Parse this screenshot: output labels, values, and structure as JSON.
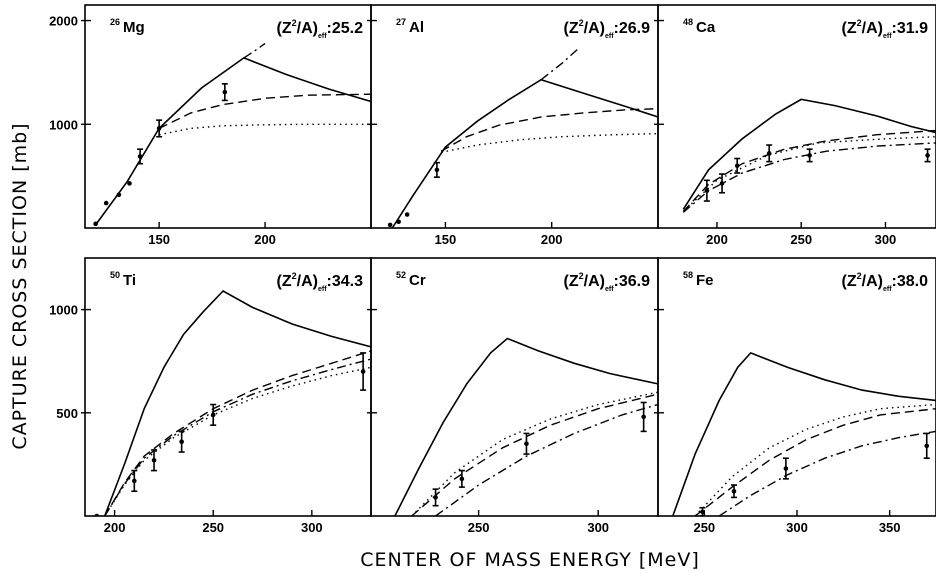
{
  "figure": {
    "ylabel": "CAPTURE CROSS SECTION [mb]",
    "xlabel": "CENTER OF MASS ENERGY [MeV]"
  },
  "chart_data": [
    {
      "type": "line",
      "nucleus": {
        "mass": "26",
        "symbol": "Mg"
      },
      "zeff_value": "25.2",
      "xlim": [
        115,
        250
      ],
      "ylim": [
        0,
        2150
      ],
      "x_ticks": [
        150,
        200
      ],
      "y_ticks": [
        1000,
        2000
      ],
      "x_tick_labels": [
        "150",
        "200"
      ],
      "y_tick_labels": [
        "1000",
        "2000"
      ],
      "series": [
        {
          "style": "solid",
          "x": [
            120,
            135,
            150,
            170,
            190,
            210,
            230,
            250
          ],
          "y": [
            30,
            450,
            960,
            1350,
            1640,
            1480,
            1340,
            1220
          ]
        },
        {
          "style": "dashed",
          "x": [
            150,
            165,
            180,
            200,
            220,
            250
          ],
          "y": [
            960,
            1110,
            1190,
            1250,
            1280,
            1290
          ]
        },
        {
          "style": "dotted",
          "x": [
            150,
            165,
            180,
            200,
            220,
            250
          ],
          "y": [
            900,
            960,
            985,
            995,
            1000,
            1000
          ]
        },
        {
          "style": "dashdot",
          "x": [
            190,
            196,
            200
          ],
          "y": [
            1640,
            1720,
            1780
          ]
        },
        {
          "style": "points",
          "x": [
            120,
            125,
            131,
            136,
            141,
            150,
            181
          ],
          "y": [
            40,
            240,
            320,
            430,
            690,
            960,
            1310
          ],
          "err": [
            0,
            0,
            0,
            0,
            70,
            80,
            80
          ]
        }
      ]
    },
    {
      "type": "line",
      "nucleus": {
        "mass": "27",
        "symbol": "Al"
      },
      "zeff_value": "26.9",
      "xlim": [
        115,
        250
      ],
      "ylim": [
        0,
        2150
      ],
      "x_ticks": [
        150,
        200
      ],
      "y_ticks": [
        1000,
        2000
      ],
      "x_tick_labels": [
        "150",
        "200"
      ],
      "y_tick_labels": [],
      "series": [
        {
          "style": "solid",
          "x": [
            125,
            135,
            150,
            165,
            180,
            195,
            215,
            235,
            250
          ],
          "y": [
            0,
            320,
            780,
            1030,
            1240,
            1430,
            1300,
            1170,
            1070
          ]
        },
        {
          "style": "dashed",
          "x": [
            148,
            160,
            175,
            195,
            215,
            235,
            250
          ],
          "y": [
            740,
            880,
            990,
            1070,
            1110,
            1140,
            1150
          ]
        },
        {
          "style": "dotted",
          "x": [
            148,
            165,
            185,
            205,
            230,
            250
          ],
          "y": [
            730,
            800,
            850,
            880,
            900,
            910
          ]
        },
        {
          "style": "dashdot",
          "x": [
            195,
            205,
            212
          ],
          "y": [
            1430,
            1590,
            1720
          ]
        },
        {
          "style": "points",
          "x": [
            124,
            128,
            132,
            146
          ],
          "y": [
            30,
            60,
            130,
            560
          ],
          "err": [
            0,
            0,
            0,
            70
          ]
        }
      ]
    },
    {
      "type": "line",
      "nucleus": {
        "mass": "48",
        "symbol": "Ca"
      },
      "zeff_value": "31.9",
      "xlim": [
        165,
        330
      ],
      "ylim": [
        0,
        2150
      ],
      "x_ticks": [
        200,
        250,
        300
      ],
      "y_ticks": [
        1000,
        2000
      ],
      "x_tick_labels": [
        "200",
        "250",
        "300"
      ],
      "y_tick_labels": [],
      "series": [
        {
          "style": "solid",
          "x": [
            180,
            195,
            215,
            235,
            250,
            270,
            295,
            315,
            330
          ],
          "y": [
            180,
            560,
            860,
            1100,
            1240,
            1180,
            1080,
            980,
            920
          ]
        },
        {
          "style": "dashed",
          "x": [
            180,
            195,
            215,
            240,
            265,
            295,
            330
          ],
          "y": [
            160,
            420,
            620,
            760,
            840,
            900,
            940
          ]
        },
        {
          "style": "dotted",
          "x": [
            180,
            200,
            230,
            260,
            300,
            330
          ],
          "y": [
            160,
            460,
            700,
            820,
            860,
            880
          ]
        },
        {
          "style": "dashdot",
          "x": [
            180,
            195,
            215,
            240,
            265,
            295,
            330
          ],
          "y": [
            150,
            360,
            530,
            660,
            740,
            790,
            820
          ]
        },
        {
          "style": "points",
          "x": [
            194,
            203,
            212,
            231,
            255,
            325
          ],
          "y": [
            360,
            430,
            600,
            720,
            700,
            700
          ],
          "err": [
            100,
            90,
            70,
            80,
            60,
            60
          ]
        }
      ]
    },
    {
      "type": "line",
      "nucleus": {
        "mass": "50",
        "symbol": "Ti"
      },
      "zeff_value": "34.3",
      "xlim": [
        185,
        330
      ],
      "ylim": [
        0,
        1250
      ],
      "x_ticks": [
        200,
        250,
        300
      ],
      "y_ticks": [
        500,
        1000
      ],
      "x_tick_labels": [
        "200",
        "250",
        "300"
      ],
      "y_tick_labels": [
        "500",
        "1000"
      ],
      "series": [
        {
          "style": "solid",
          "x": [
            195,
            205,
            215,
            225,
            235,
            245,
            255,
            270,
            290,
            310,
            330
          ],
          "y": [
            0,
            250,
            520,
            720,
            880,
            990,
            1090,
            1010,
            930,
            870,
            820
          ]
        },
        {
          "style": "dashed",
          "x": [
            195,
            205,
            215,
            230,
            250,
            270,
            290,
            310,
            330
          ],
          "y": [
            0,
            160,
            290,
            400,
            520,
            610,
            680,
            740,
            800
          ]
        },
        {
          "style": "dotted",
          "x": [
            195,
            205,
            215,
            230,
            250,
            270,
            290,
            310,
            330
          ],
          "y": [
            0,
            150,
            270,
            380,
            490,
            570,
            630,
            680,
            720
          ]
        },
        {
          "style": "dashdot",
          "x": [
            195,
            205,
            215,
            230,
            250,
            270,
            290,
            310,
            330
          ],
          "y": [
            0,
            155,
            280,
            390,
            505,
            590,
            655,
            710,
            760
          ]
        },
        {
          "style": "points",
          "x": [
            191,
            210,
            220,
            234,
            250,
            326
          ],
          "y": [
            0,
            170,
            270,
            360,
            490,
            700
          ],
          "err": [
            0,
            50,
            50,
            50,
            50,
            90
          ]
        }
      ]
    },
    {
      "type": "line",
      "nucleus": {
        "mass": "52",
        "symbol": "Cr"
      },
      "zeff_value": "36.9",
      "xlim": [
        205,
        325
      ],
      "ylim": [
        0,
        1250
      ],
      "x_ticks": [
        250,
        300
      ],
      "y_ticks": [
        500,
        1000
      ],
      "x_tick_labels": [
        "250",
        "300"
      ],
      "y_tick_labels": [],
      "series": [
        {
          "style": "solid",
          "x": [
            215,
            225,
            235,
            245,
            255,
            262,
            275,
            290,
            305,
            325
          ],
          "y": [
            0,
            230,
            450,
            640,
            790,
            860,
            800,
            740,
            690,
            640
          ]
        },
        {
          "style": "dashed",
          "x": [
            222,
            240,
            260,
            280,
            300,
            325
          ],
          "y": [
            0,
            180,
            330,
            440,
            520,
            590
          ]
        },
        {
          "style": "dotted",
          "x": [
            222,
            240,
            260,
            280,
            300,
            325
          ],
          "y": [
            0,
            210,
            370,
            470,
            540,
            600
          ]
        },
        {
          "style": "dashdot",
          "x": [
            232,
            250,
            270,
            290,
            310,
            325
          ],
          "y": [
            0,
            150,
            290,
            400,
            490,
            540
          ]
        },
        {
          "style": "points",
          "x": [
            232,
            243,
            270,
            319
          ],
          "y": [
            90,
            180,
            350,
            480
          ],
          "err": [
            40,
            40,
            50,
            70
          ]
        }
      ]
    },
    {
      "type": "line",
      "nucleus": {
        "mass": "58",
        "symbol": "Fe"
      },
      "zeff_value": "38.0",
      "xlim": [
        225,
        375
      ],
      "ylim": [
        0,
        1250
      ],
      "x_ticks": [
        250,
        300,
        350
      ],
      "y_ticks": [
        500,
        1000
      ],
      "x_tick_labels": [
        "250",
        "300",
        "350"
      ],
      "y_tick_labels": [],
      "series": [
        {
          "style": "solid",
          "x": [
            233,
            245,
            258,
            268,
            275,
            295,
            315,
            335,
            355,
            375
          ],
          "y": [
            0,
            300,
            560,
            720,
            790,
            720,
            660,
            610,
            580,
            560
          ]
        },
        {
          "style": "dashed",
          "x": [
            245,
            265,
            285,
            305,
            325,
            345,
            375
          ],
          "y": [
            0,
            140,
            270,
            370,
            440,
            490,
            520
          ]
        },
        {
          "style": "dotted",
          "x": [
            245,
            265,
            285,
            305,
            325,
            345,
            375
          ],
          "y": [
            0,
            190,
            330,
            420,
            480,
            520,
            540
          ]
        },
        {
          "style": "dashdot",
          "x": [
            258,
            275,
            295,
            315,
            335,
            355,
            375
          ],
          "y": [
            0,
            100,
            200,
            280,
            340,
            380,
            410
          ]
        },
        {
          "style": "points",
          "x": [
            249,
            266,
            294,
            370
          ],
          "y": [
            20,
            120,
            230,
            340
          ],
          "err": [
            20,
            30,
            50,
            60
          ]
        }
      ]
    }
  ]
}
